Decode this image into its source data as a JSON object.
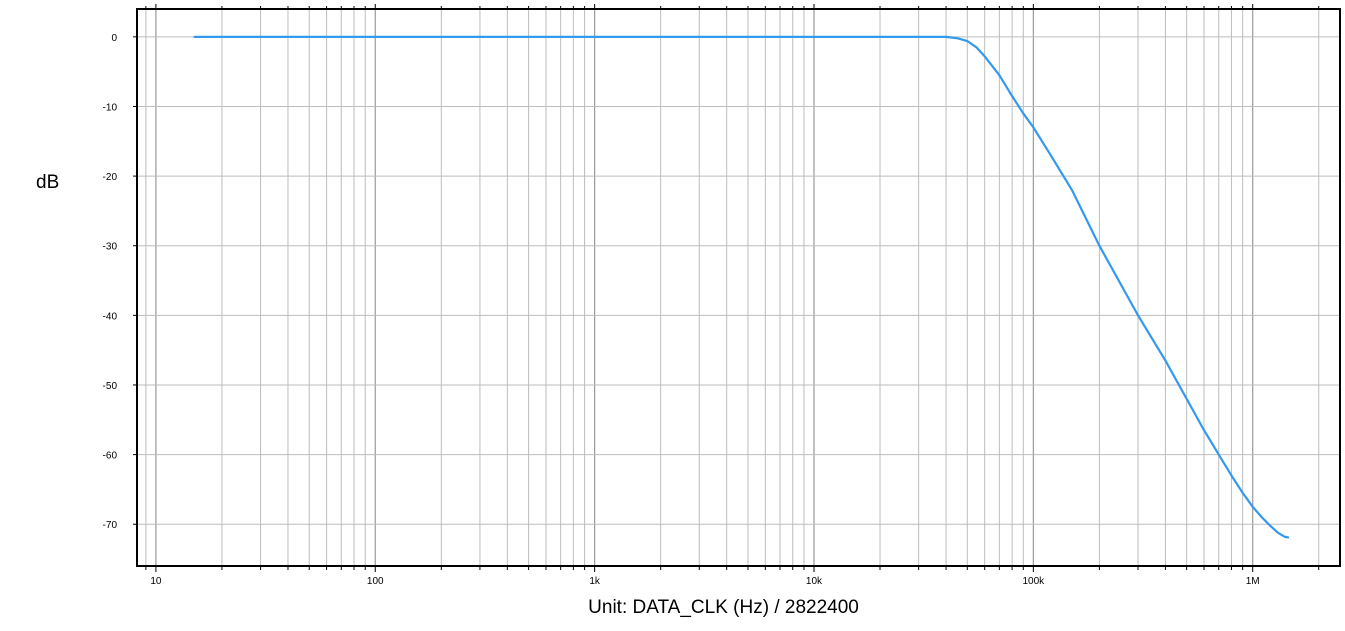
{
  "chart_data": {
    "type": "line",
    "title": "",
    "xlabel": "Unit: DATA_CLK (Hz) / 2822400",
    "ylabel": "dB",
    "x_scale": "log",
    "xlim": [
      8.2,
      2500000
    ],
    "ylim": [
      -76,
      4
    ],
    "grid": true,
    "x_ticks": [
      {
        "value": 10,
        "label": "10"
      },
      {
        "value": 100,
        "label": "100"
      },
      {
        "value": 1000,
        "label": "1k"
      },
      {
        "value": 10000,
        "label": "10k"
      },
      {
        "value": 100000,
        "label": "100k"
      },
      {
        "value": 1000000,
        "label": "1M"
      }
    ],
    "y_ticks": [
      {
        "value": 0,
        "label": "0"
      },
      {
        "value": -10,
        "label": "-10"
      },
      {
        "value": -20,
        "label": "-20"
      },
      {
        "value": -30,
        "label": "-30"
      },
      {
        "value": -40,
        "label": "-40"
      },
      {
        "value": -50,
        "label": "-50"
      },
      {
        "value": -60,
        "label": "-60"
      },
      {
        "value": -70,
        "label": "-70"
      }
    ],
    "series": [
      {
        "color": "#3399ee",
        "x": [
          15,
          100,
          1000,
          10000,
          40000,
          45000,
          50000,
          55000,
          60000,
          70000,
          80000,
          90000,
          100000,
          120000,
          150000,
          200000,
          250000,
          300000,
          400000,
          500000,
          600000,
          700000,
          800000,
          900000,
          1000000,
          1100000,
          1200000,
          1300000,
          1400000,
          1450000
        ],
        "y": [
          0,
          0,
          0,
          0,
          0,
          -0.2,
          -0.6,
          -1.5,
          -2.8,
          -5.5,
          -8.5,
          -11,
          -13,
          -17,
          -22,
          -30,
          -35.5,
          -40,
          -46.5,
          -52,
          -56.5,
          -60,
          -63,
          -65.5,
          -67.5,
          -69,
          -70.2,
          -71.2,
          -71.8,
          -71.9
        ]
      }
    ]
  }
}
